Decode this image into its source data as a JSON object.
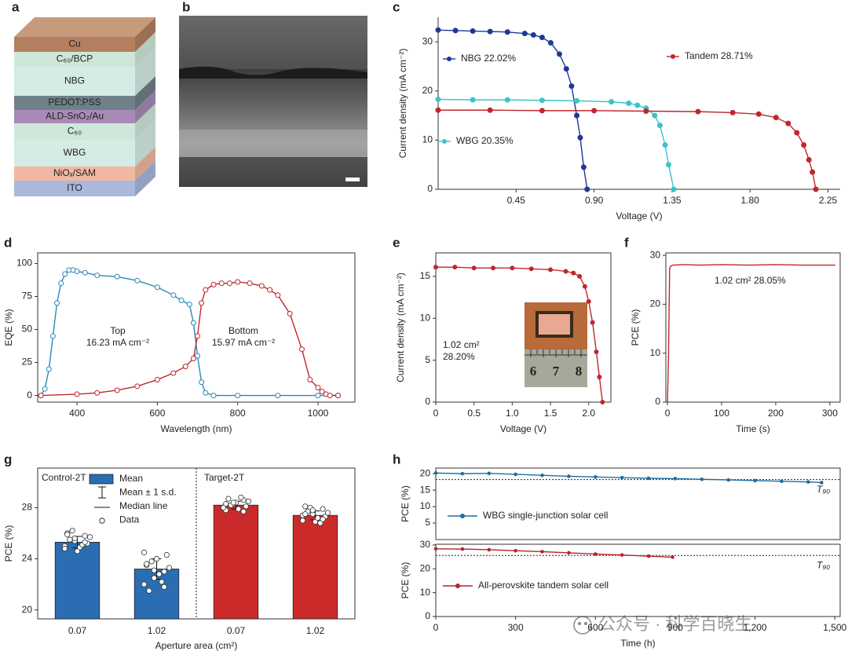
{
  "panel_labels": [
    "a",
    "b",
    "c",
    "d",
    "e",
    "f",
    "g",
    "h"
  ],
  "layer_stack": {
    "layers": [
      "Cu",
      "C₆₀/BCP",
      "NBG",
      "PEDOT:PSS",
      "ALD-SnO₂/Au",
      "C₆₀",
      "WBG",
      "NiOₓ/SAM",
      "ITO"
    ]
  },
  "watermark": "公众号 · 科学百晓生",
  "chart_data": [
    {
      "type": "line",
      "xlabel": "Voltage (V)",
      "ylabel": "Current density (mA cm⁻²)",
      "marker": "filled",
      "xlim": [
        0,
        2.32
      ],
      "xticks": [
        0.45,
        {
          "value": 0.9,
          "label": "0.90"
        },
        1.35,
        {
          "value": 1.8,
          "label": "1.80"
        },
        2.25
      ],
      "ylim": [
        0,
        35
      ],
      "yticks": [
        0,
        10,
        20,
        30
      ],
      "series": [
        {
          "name": "NBG 22.02%",
          "color": "#1e3a96",
          "x": [
            0,
            0.1,
            0.2,
            0.3,
            0.4,
            0.5,
            0.55,
            0.6,
            0.65,
            0.7,
            0.74,
            0.77,
            0.8,
            0.82,
            0.84,
            0.86
          ],
          "values": [
            32.4,
            32.3,
            32.2,
            32.1,
            32.0,
            31.7,
            31.4,
            30.9,
            29.8,
            27.5,
            24.5,
            21,
            15,
            10.5,
            4.5,
            0
          ]
        },
        {
          "name": "WBG 20.35%",
          "color": "#3cc3c8",
          "x": [
            0,
            0.2,
            0.4,
            0.6,
            0.8,
            1.0,
            1.1,
            1.15,
            1.2,
            1.25,
            1.28,
            1.31,
            1.33,
            1.36
          ],
          "values": [
            18.3,
            18.2,
            18.2,
            18.1,
            18.0,
            17.8,
            17.5,
            17.1,
            16.5,
            15,
            13,
            9,
            5,
            0
          ]
        },
        {
          "name": "Tandem 28.71%",
          "color": "#c0272d",
          "x": [
            0,
            0.3,
            0.6,
            0.9,
            1.2,
            1.5,
            1.7,
            1.85,
            1.95,
            2.02,
            2.07,
            2.11,
            2.14,
            2.16,
            2.18
          ],
          "values": [
            16.1,
            16.1,
            16.0,
            16.0,
            15.9,
            15.8,
            15.6,
            15.3,
            14.6,
            13.4,
            11.5,
            9,
            6,
            3.5,
            0
          ]
        }
      ]
    },
    {
      "type": "line",
      "xlabel": "Wavelength (nm)",
      "ylabel": "EQE (%)",
      "marker": "open",
      "xlim": [
        302,
        1092
      ],
      "xticks": [
        400,
        600,
        800,
        1000
      ],
      "ylim": [
        -5,
        108
      ],
      "yticks": [
        0,
        25,
        50,
        75,
        100
      ],
      "annotations": [
        [
          "Top",
          "16.23 mA cm⁻²"
        ],
        [
          "Bottom",
          "15.97 mA cm⁻²"
        ]
      ],
      "series": [
        {
          "color": "#2b88b9",
          "x": [
            310,
            320,
            330,
            340,
            350,
            360,
            370,
            380,
            390,
            400,
            420,
            450,
            500,
            550,
            600,
            640,
            660,
            680,
            690,
            700,
            710,
            720,
            740,
            800,
            900,
            1000,
            1050
          ],
          "values": [
            0,
            5,
            20,
            45,
            70,
            85,
            92,
            95,
            95,
            94,
            93,
            91,
            90,
            87,
            82,
            76,
            72,
            69,
            55,
            30,
            10,
            2,
            0,
            0,
            0,
            0,
            0
          ]
        },
        {
          "color": "#c0272d",
          "x": [
            310,
            400,
            450,
            500,
            550,
            600,
            640,
            670,
            690,
            700,
            710,
            720,
            740,
            760,
            780,
            800,
            830,
            860,
            880,
            900,
            930,
            960,
            980,
            1000,
            1010,
            1020,
            1030,
            1050
          ],
          "values": [
            0,
            1,
            2,
            4,
            7,
            12,
            17,
            22,
            28,
            45,
            70,
            80,
            84,
            85,
            85,
            86,
            85,
            83,
            80,
            76,
            62,
            35,
            12,
            6,
            3,
            1,
            0,
            0
          ]
        }
      ]
    },
    {
      "type": "line",
      "xlabel": "Voltage (V)",
      "ylabel": "Current density (mA cm⁻²)",
      "marker": "filled",
      "xlim": [
        0,
        2.29
      ],
      "xticks": [
        0,
        0.5,
        {
          "value": 1,
          "label": "1.0"
        },
        1.5,
        {
          "value": 2,
          "label": "2.0"
        }
      ],
      "ylim": [
        0,
        17.8
      ],
      "yticks": [
        0,
        5,
        10,
        15
      ],
      "annotations": [
        [
          "1.02 cm²",
          "28.20%"
        ]
      ],
      "inset_labels": [
        "6",
        "7",
        "8"
      ],
      "series": [
        {
          "color": "#c0272d",
          "x": [
            0,
            0.25,
            0.5,
            0.75,
            1.0,
            1.25,
            1.5,
            1.7,
            1.8,
            1.88,
            1.95,
            2.0,
            2.05,
            2.1,
            2.14,
            2.18
          ],
          "values": [
            16.1,
            16.1,
            16.0,
            16.0,
            16.0,
            15.9,
            15.8,
            15.6,
            15.4,
            15.0,
            13.8,
            12,
            9.5,
            6,
            3,
            0
          ]
        }
      ]
    },
    {
      "type": "line",
      "xlabel": "Time (s)",
      "ylabel": "PCE (%)",
      "marker": "none",
      "xlim": [
        -3,
        319
      ],
      "xticks": [
        0,
        100,
        200,
        300
      ],
      "ylim": [
        0,
        30.5
      ],
      "yticks": [
        0,
        10,
        20,
        30
      ],
      "annotations": [
        [
          "1.02 cm² 28.05%"
        ]
      ],
      "series": [
        {
          "color": "#c0272d",
          "x": [
            0,
            2,
            4,
            6,
            10,
            30,
            60,
            100,
            150,
            200,
            250,
            300,
            310
          ],
          "values": [
            0,
            10,
            27.3,
            27.8,
            28.0,
            28.1,
            28.0,
            28.1,
            28.0,
            28.1,
            28.0,
            28.0,
            28.0
          ]
        }
      ]
    },
    {
      "type": "bar",
      "xlabel": "Aperture area (cm²)",
      "ylabel": "PCE (%)",
      "ylim": [
        19.3,
        31.1
      ],
      "yticks": [
        20,
        24,
        28
      ],
      "categories": [
        "0.07",
        "1.02",
        "0.07",
        "1.02"
      ],
      "groups": [
        "Control-2T",
        "Target-2T"
      ],
      "values": [
        25.3,
        23.2,
        28.2,
        27.4
      ],
      "errors": [
        0.45,
        0.8,
        0.3,
        0.35
      ],
      "colors": [
        "#2a6db3",
        "#2a6db3",
        "#cc2a2a",
        "#cc2a2a"
      ],
      "legend": [
        "Mean",
        "Mean ± 1 s.d.",
        "Median line",
        "Data"
      ],
      "data_points": [
        [
          25.0,
          25.4,
          25.8,
          26.0,
          24.6,
          25.2,
          25.5,
          24.9,
          25.7,
          26.2,
          25.1,
          24.8,
          25.6,
          25.3,
          25.9
        ],
        [
          22.0,
          22.5,
          23.0,
          23.5,
          24.0,
          24.3,
          21.5,
          22.8,
          23.3,
          23.8,
          22.2,
          24.5,
          23.1,
          21.8,
          23.6
        ],
        [
          28.0,
          28.3,
          28.6,
          27.8,
          28.4,
          28.1,
          28.7,
          27.9,
          28.5,
          28.2,
          28.8,
          28.0,
          28.4,
          27.7,
          28.3
        ],
        [
          27.0,
          27.5,
          27.9,
          28.1,
          26.9,
          27.3,
          27.7,
          27.2,
          27.6,
          28.0,
          26.8,
          27.4,
          27.8,
          27.1,
          27.5
        ]
      ]
    },
    {
      "type": "line",
      "ylabel": "PCE (%)",
      "marker": "filled",
      "xlim": [
        0,
        1520
      ],
      "ylim": [
        0,
        21.7
      ],
      "yticks": [
        5,
        10,
        15,
        20
      ],
      "threshold": 18.2,
      "threshold_label": "T₉₀",
      "series": [
        {
          "name": "WBG single-junction solar cell",
          "color": "#1f6e9e",
          "x": [
            0,
            100,
            200,
            300,
            400,
            500,
            600,
            700,
            800,
            900,
            1000,
            1100,
            1200,
            1300,
            1400,
            1450
          ],
          "values": [
            20.2,
            20.0,
            20.1,
            19.8,
            19.5,
            19.2,
            19.0,
            18.8,
            18.6,
            18.5,
            18.3,
            18.1,
            17.9,
            17.7,
            17.5,
            17.3
          ]
        }
      ]
    },
    {
      "type": "line",
      "xlabel": "Time (h)",
      "ylabel": "PCE (%)",
      "marker": "filled",
      "xlim": [
        0,
        1520
      ],
      "xticks": [
        0,
        300,
        600,
        900,
        {
          "value": 1200,
          "label": "1,200"
        },
        {
          "value": 1500,
          "label": "1,500"
        }
      ],
      "ylim": [
        0,
        30.3
      ],
      "yticks": [
        0,
        10,
        20,
        30
      ],
      "threshold": 25.6,
      "threshold_label": "T₉₀",
      "series": [
        {
          "name": "All-perovskite tandem solar cell",
          "color": "#b3242a",
          "x": [
            0,
            100,
            200,
            300,
            400,
            500,
            600,
            700,
            800,
            890
          ],
          "values": [
            28.4,
            28.3,
            28.0,
            27.6,
            27.2,
            26.7,
            26.2,
            25.8,
            25.3,
            24.9
          ]
        }
      ]
    }
  ]
}
